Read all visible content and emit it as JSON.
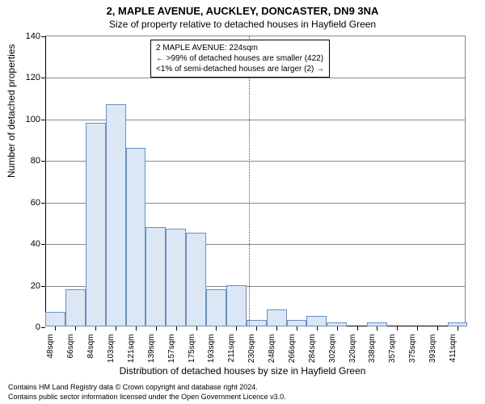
{
  "title_main": "2, MAPLE AVENUE, AUCKLEY, DONCASTER, DN9 3NA",
  "title_sub": "Size of property relative to detached houses in Hayfield Green",
  "ylabel": "Number of detached properties",
  "xlabel": "Distribution of detached houses by size in Hayfield Green",
  "footer_line1": "Contains HM Land Registry data © Crown copyright and database right 2024.",
  "footer_line2": "Contains public sector information licensed under the Open Government Licence v3.0.",
  "info_box": {
    "line1": "2 MAPLE AVENUE: 224sqm",
    "line2": "← >99% of detached houses are smaller (422)",
    "line3": "<1% of semi-detached houses are larger (2) →"
  },
  "chart": {
    "type": "histogram",
    "ylim": [
      0,
      140
    ],
    "ytick_step": 20,
    "yticks": [
      0,
      20,
      40,
      60,
      80,
      100,
      120,
      140
    ],
    "x_min": 40,
    "x_max": 420,
    "bin_width_sqm": 18.18,
    "xtick_labels": [
      "48sqm",
      "66sqm",
      "84sqm",
      "103sqm",
      "121sqm",
      "139sqm",
      "157sqm",
      "175sqm",
      "193sqm",
      "211sqm",
      "230sqm",
      "248sqm",
      "266sqm",
      "284sqm",
      "302sqm",
      "320sqm",
      "338sqm",
      "357sqm",
      "375sqm",
      "393sqm",
      "411sqm"
    ],
    "values": [
      7,
      18,
      98,
      107,
      86,
      48,
      47,
      45,
      18,
      20,
      3,
      8,
      3,
      5,
      2,
      0,
      2,
      0,
      0,
      0,
      2
    ],
    "bar_fill": "#dbe7f5",
    "bar_stroke": "#6a8fc1",
    "grid_color": "#888888",
    "background_color": "#ffffff",
    "ref_line": {
      "x_sqm": 224,
      "color": "#ff0000"
    },
    "label_fontsize": 12,
    "tick_fontsize": 11,
    "xtick_fontsize": 10,
    "info_fontsize": 10
  }
}
